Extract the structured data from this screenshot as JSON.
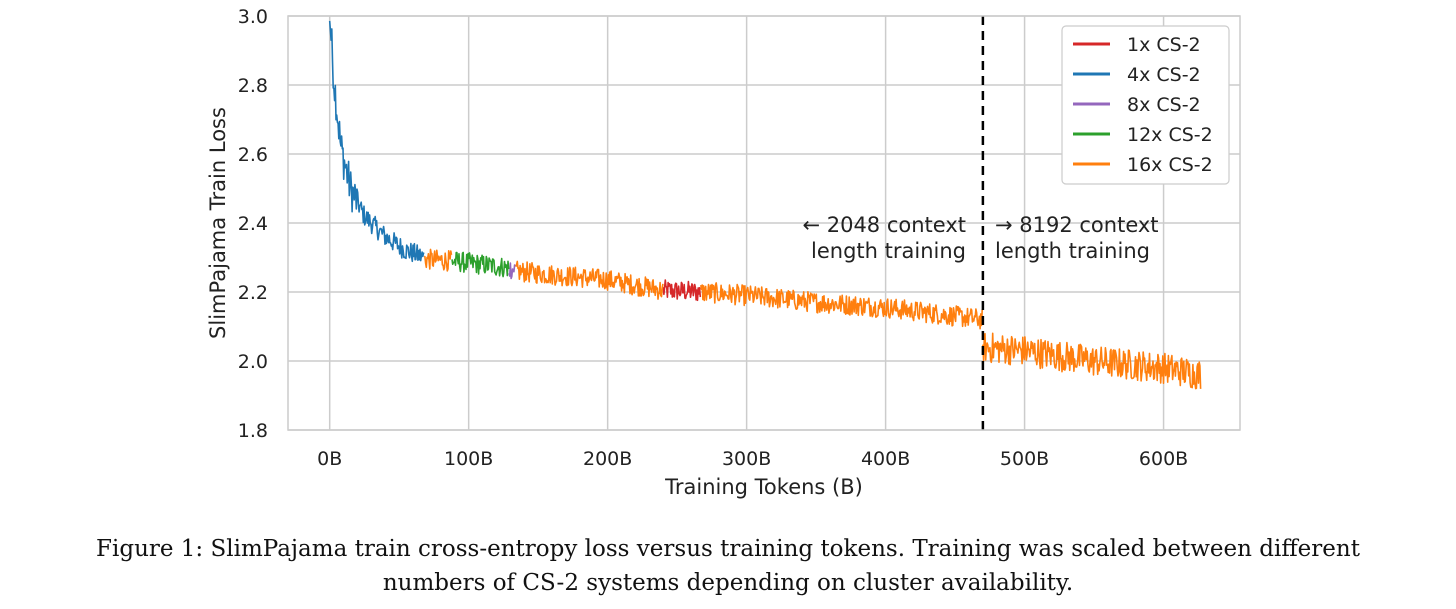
{
  "chart_data": {
    "type": "line",
    "xlabel": "Training Tokens (B)",
    "ylabel": "SlimPajama Train Loss",
    "xlim": [
      -30,
      655
    ],
    "ylim": [
      1.8,
      3.0
    ],
    "xticks": [
      0,
      100,
      200,
      300,
      400,
      500,
      600
    ],
    "xtick_labels": [
      "0B",
      "100B",
      "200B",
      "300B",
      "400B",
      "500B",
      "600B"
    ],
    "yticks": [
      1.8,
      2.0,
      2.2,
      2.4,
      2.6,
      2.8,
      3.0
    ],
    "ytick_labels": [
      "1.8",
      "2.0",
      "2.2",
      "2.4",
      "2.6",
      "2.8",
      "3.0"
    ],
    "grid": true,
    "legend_position": "top-right",
    "series": [
      {
        "name": "1x CS-2",
        "color": "#d62728",
        "segments": [
          [
            [
              240,
              2.205
            ],
            [
              267,
              2.2
            ]
          ]
        ]
      },
      {
        "name": "4x CS-2",
        "color": "#1f77b4",
        "segments": [
          [
            [
              0,
              3.0
            ],
            [
              3,
              2.82
            ],
            [
              8,
              2.62
            ],
            [
              15,
              2.5
            ],
            [
              25,
              2.42
            ],
            [
              40,
              2.36
            ],
            [
              55,
              2.32
            ],
            [
              68,
              2.3
            ]
          ]
        ]
      },
      {
        "name": "8x CS-2",
        "color": "#9467bd",
        "segments": [
          [
            [
              129,
              2.268
            ],
            [
              134,
              2.266
            ]
          ]
        ]
      },
      {
        "name": "12x CS-2",
        "color": "#2ca02c",
        "segments": [
          [
            [
              88,
              2.29
            ],
            [
              129,
              2.27
            ]
          ]
        ]
      },
      {
        "name": "16x CS-2",
        "color": "#ff7f0e",
        "segments": [
          [
            [
              68,
              2.295
            ],
            [
              88,
              2.29
            ]
          ],
          [
            [
              134,
              2.26
            ],
            [
              200,
              2.235
            ],
            [
              240,
              2.205
            ]
          ],
          [
            [
              267,
              2.2
            ],
            [
              300,
              2.19
            ],
            [
              350,
              2.17
            ],
            [
              400,
              2.155
            ],
            [
              470,
              2.12
            ]
          ],
          [
            [
              470,
              2.04
            ],
            [
              500,
              2.03
            ],
            [
              550,
              2.0
            ],
            [
              600,
              1.98
            ],
            [
              627,
              1.96
            ]
          ]
        ]
      }
    ],
    "vline": {
      "x": 470,
      "style": "dashed",
      "color": "#000000"
    },
    "annotations": {
      "left": {
        "line1": "← 2048 context",
        "line2": "length training"
      },
      "right": {
        "line1": "→ 8192 context",
        "line2": "length training"
      }
    }
  },
  "caption": {
    "line1": "Figure 1: SlimPajama train cross-entropy loss versus training tokens. Training was scaled between different",
    "line2": "numbers of CS-2 systems depending on cluster availability."
  }
}
